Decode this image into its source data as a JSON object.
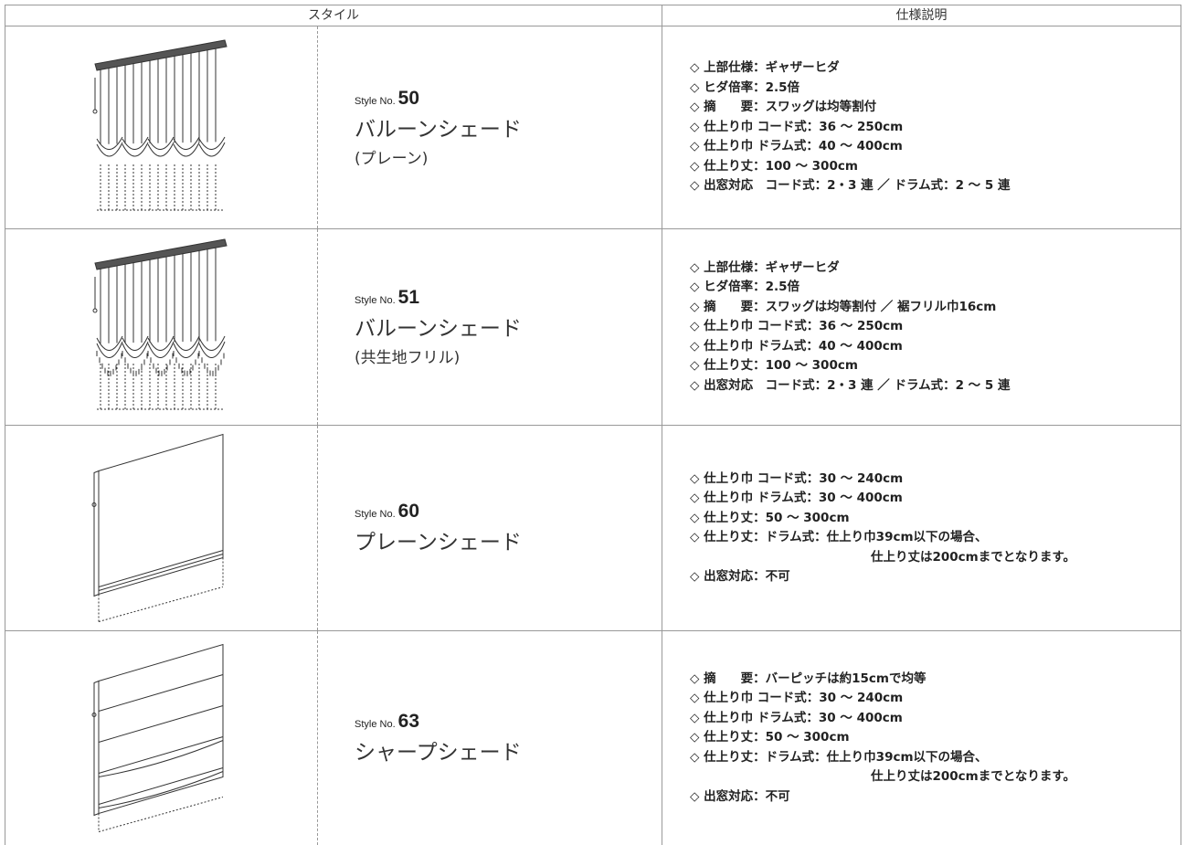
{
  "header": {
    "style": "スタイル",
    "spec": "仕様説明"
  },
  "rows": [
    {
      "style_no_label": "Style No.",
      "style_no": "50",
      "name": "バルーンシェード",
      "sub": "(プレーン)",
      "specs": [
        "◇ 上部仕様：ギャザーヒダ",
        "◇ ヒダ倍率：2.5倍",
        "◇ 摘　　要：スワッグは均等割付",
        "◇ 仕上り巾 コード式：36 ～ 250cm",
        "◇ 仕上り巾 ドラム式：40 ～ 400cm",
        "◇ 仕上り丈：100 ～ 300cm",
        "◇ 出窓対応　コード式：2・3 連 ／ ドラム式：2 ～ 5 連"
      ]
    },
    {
      "style_no_label": "Style No.",
      "style_no": "51",
      "name": "バルーンシェード",
      "sub": "(共生地フリル)",
      "specs": [
        "◇ 上部仕様：ギャザーヒダ",
        "◇ ヒダ倍率：2.5倍",
        "◇ 摘　　要：スワッグは均等割付 ／ 裾フリル巾16cm",
        "◇ 仕上り巾 コード式：36 ～ 250cm",
        "◇ 仕上り巾 ドラム式：40 ～ 400cm",
        "◇ 仕上り丈：100 ～ 300cm",
        "◇ 出窓対応　コード式：2・3 連 ／ ドラム式：2 ～ 5 連"
      ]
    },
    {
      "style_no_label": "Style No.",
      "style_no": "60",
      "name": "プレーンシェード",
      "specs": [
        "◇ 仕上り巾 コード式：30 ～ 240cm",
        "◇ 仕上り巾 ドラム式：30 ～ 400cm",
        "◇ 仕上り丈：50 ～ 300cm",
        [
          "◇ 仕上り丈：ドラム式：仕上り巾39cm以下の場合、",
          "仕上り丈は200cmまでとなります。"
        ],
        "◇ 出窓対応：不可"
      ]
    },
    {
      "style_no_label": "Style No.",
      "style_no": "63",
      "name": "シャープシェード",
      "specs": [
        "◇ 摘　　要：バーピッチは約15cmで均等",
        "◇ 仕上り巾 コード式：30 ～ 240cm",
        "◇ 仕上り巾 ドラム式：30 ～ 400cm",
        "◇ 仕上り丈：50 ～ 300cm",
        [
          "◇ 仕上り丈：ドラム式：仕上り巾39cm以下の場合、",
          "仕上り丈は200cmまでとなります。"
        ],
        "◇ 出窓対応：不可"
      ]
    }
  ]
}
